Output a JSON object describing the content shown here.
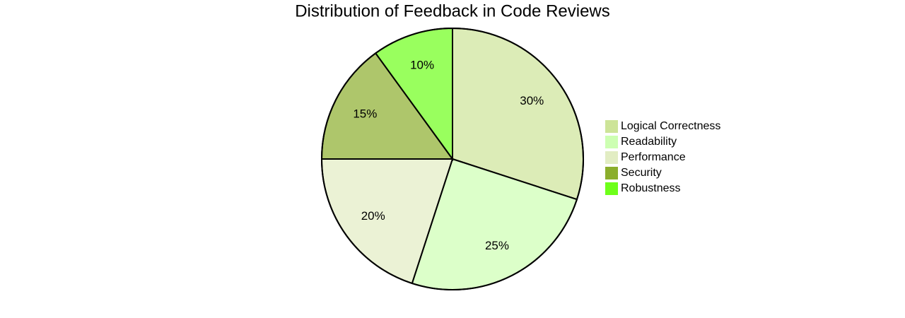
{
  "chart_data": {
    "type": "pie",
    "title": "Distribution of Feedback in Code Reviews",
    "categories": [
      "Logical Correctness",
      "Readability",
      "Performance",
      "Security",
      "Robustness"
    ],
    "values": [
      30,
      25,
      20,
      15,
      10
    ],
    "value_labels": [
      "30%",
      "25%",
      "20%",
      "15%",
      "10%"
    ],
    "colors": [
      "#cde498",
      "#cdffb2",
      "#e2edc3",
      "#8bae2c",
      "#6eff1a"
    ]
  }
}
